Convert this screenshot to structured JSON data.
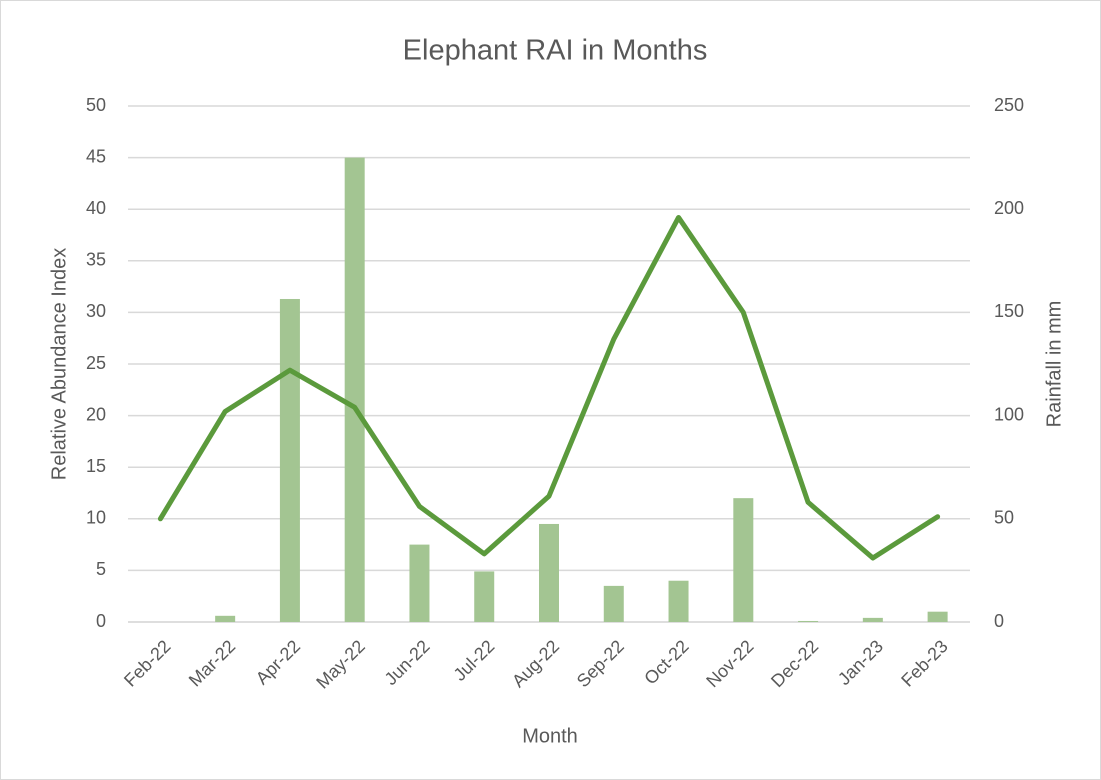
{
  "chart_data": {
    "type": "bar",
    "title": "Elephant RAI in Months",
    "x_label": "Month",
    "y_label": "Relative Abundance Index",
    "y2_label": "Rainfall in mm",
    "categories": [
      "Feb-22",
      "Mar-22",
      "Apr-22",
      "May-22",
      "Jun-22",
      "Jul-22",
      "Aug-22",
      "Sep-22",
      "Oct-22",
      "Nov-22",
      "Dec-22",
      "Jan-23",
      "Feb-23"
    ],
    "series": [
      {
        "type": "bar",
        "color": "#a3c592",
        "values": [
          0,
          0.6,
          31.3,
          45,
          7.5,
          4.9,
          9.5,
          3.5,
          4.0,
          12.0,
          0.1,
          0.4,
          1.0
        ]
      },
      {
        "type": "line",
        "axis": "y2",
        "color": "#5b9a3c",
        "values": [
          50,
          102,
          122,
          104,
          56,
          33,
          61,
          137,
          196,
          150,
          58,
          31,
          51
        ]
      }
    ],
    "ylim": [
      0,
      50
    ],
    "yticks": [
      0,
      5,
      10,
      15,
      20,
      25,
      30,
      35,
      40,
      45,
      50
    ],
    "y2lim": [
      0,
      250
    ],
    "y2ticks": [
      0,
      50,
      100,
      150,
      200,
      250
    ],
    "grid": true
  }
}
